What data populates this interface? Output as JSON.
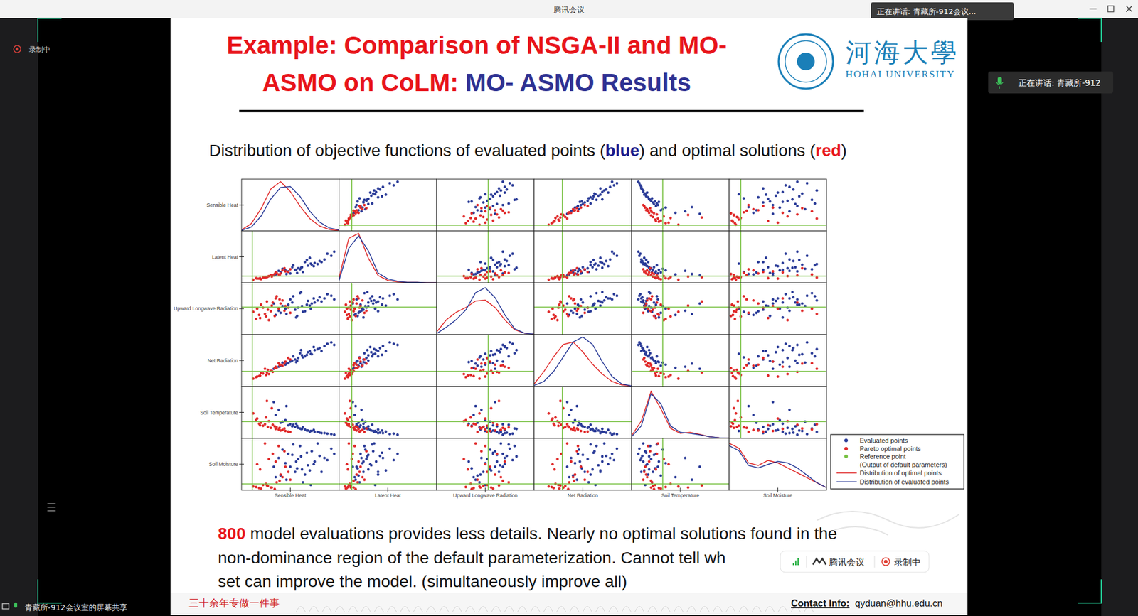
{
  "window": {
    "title": "腾讯会议",
    "speaking_top": "正在讲话: 青藏所-912会议...",
    "speaking_side": "正在讲话: 青藏所-912",
    "recording": "录制中",
    "share_label": "青藏所-912会议室的屏幕共享"
  },
  "slide": {
    "title_line1": "Example: Comparison of NSGA-II and MO-",
    "title_line2": "ASMO on CoLM: ",
    "title_highlight": "MO- ASMO Results",
    "logo_cn": "河海大學",
    "logo_en": "HOHAI UNIVERSITY",
    "subtitle_parts": [
      "Distribution of objective functions of evaluated points (",
      "blue",
      ") and optimal solutions (",
      "red",
      ")"
    ],
    "note_number": 800,
    "note_lines": [
      " model evaluations provides less details. Nearly no optimal solutions found in the",
      "non-dominance region of the default parameterization. Cannot tell wh",
      "set can improve the model. (simultaneously improve all)"
    ],
    "motto": "三十余年专做一件事",
    "contact_label": "Contact Info:",
    "contact": "qyduan@hhu.edu.cn"
  },
  "overlay": {
    "app": "腾讯会议",
    "recording": "录制中"
  },
  "chart_data": {
    "type": "scatter_matrix",
    "variables": [
      "Sensible Heat",
      "Latent Heat",
      "Upward Longwave Radiation",
      "Net Radiation",
      "Soil Temperature",
      "Soil Moisture"
    ],
    "xlim": [
      0,
      1
    ],
    "ylim": [
      0,
      1
    ],
    "tick_labels": false,
    "grid": false,
    "legend": "right",
    "reference": [
      0.11,
      0.13,
      0.53,
      0.29,
      0.32,
      0.12
    ],
    "reference_color": "#78c142",
    "reference_label": "Reference point",
    "reference_note": "(Output of default parameters)",
    "series": [
      {
        "name": "Evaluated points",
        "color": "#2b3c98",
        "marker": "circle",
        "values": [
          [
            0.62,
            0.3,
            0.55,
            0.6,
            0.18,
            0.4
          ],
          [
            0.75,
            0.38,
            0.62,
            0.7,
            0.12,
            0.55
          ],
          [
            0.55,
            0.25,
            0.48,
            0.52,
            0.22,
            0.35
          ],
          [
            0.85,
            0.45,
            0.7,
            0.78,
            0.1,
            0.62
          ],
          [
            0.48,
            0.22,
            0.58,
            0.45,
            0.25,
            0.7
          ],
          [
            0.68,
            0.33,
            0.65,
            0.66,
            0.15,
            0.48
          ],
          [
            0.4,
            0.2,
            0.42,
            0.4,
            0.3,
            0.28
          ],
          [
            0.92,
            0.52,
            0.75,
            0.85,
            0.08,
            0.8
          ],
          [
            0.58,
            0.28,
            0.52,
            0.55,
            0.2,
            0.6
          ],
          [
            0.72,
            0.35,
            0.6,
            0.62,
            0.14,
            0.75
          ],
          [
            0.5,
            0.18,
            0.68,
            0.48,
            0.27,
            0.45
          ],
          [
            0.65,
            0.4,
            0.45,
            0.58,
            0.17,
            0.3
          ],
          [
            0.8,
            0.42,
            0.72,
            0.74,
            0.11,
            0.66
          ],
          [
            0.45,
            0.24,
            0.5,
            0.42,
            0.35,
            0.52
          ],
          [
            0.6,
            0.26,
            0.8,
            0.64,
            0.19,
            0.85
          ],
          [
            0.7,
            0.48,
            0.56,
            0.68,
            0.13,
            0.38
          ],
          [
            0.35,
            0.16,
            0.38,
            0.36,
            0.45,
            0.25
          ],
          [
            0.78,
            0.36,
            0.66,
            0.72,
            0.12,
            0.9
          ],
          [
            0.52,
            0.3,
            0.62,
            0.5,
            0.23,
            0.68
          ],
          [
            0.88,
            0.56,
            0.78,
            0.82,
            0.09,
            0.58
          ],
          [
            0.63,
            0.21,
            0.44,
            0.56,
            0.21,
            0.15
          ],
          [
            0.42,
            0.27,
            0.55,
            0.46,
            0.32,
            0.78
          ],
          [
            0.74,
            0.32,
            0.7,
            0.76,
            0.16,
            0.5
          ],
          [
            0.57,
            0.19,
            0.36,
            0.49,
            0.24,
            0.42
          ],
          [
            0.67,
            0.44,
            0.58,
            0.61,
            0.15,
            0.72
          ],
          [
            0.38,
            0.23,
            0.46,
            0.38,
            0.55,
            0.62
          ],
          [
            0.82,
            0.4,
            0.64,
            0.68,
            0.1,
            0.35
          ],
          [
            0.53,
            0.34,
            0.74,
            0.58,
            0.26,
            0.88
          ],
          [
            0.46,
            0.17,
            0.4,
            0.44,
            0.62,
            0.2
          ],
          [
            0.61,
            0.29,
            0.82,
            0.7,
            0.18,
            0.65
          ],
          [
            0.71,
            0.37,
            0.5,
            0.63,
            0.14,
            0.1
          ],
          [
            0.33,
            0.14,
            0.6,
            0.34,
            0.7,
            0.45
          ],
          [
            0.95,
            0.6,
            0.68,
            0.8,
            0.07,
            0.7
          ],
          [
            0.56,
            0.25,
            0.33,
            0.47,
            0.28,
            0.55
          ]
        ]
      },
      {
        "name": "Pareto optimal points",
        "color": "#e02a2a",
        "marker": "circle",
        "values": [
          [
            0.3,
            0.15,
            0.45,
            0.3,
            0.2,
            0.05
          ],
          [
            0.22,
            0.1,
            0.52,
            0.25,
            0.24,
            0.1
          ],
          [
            0.4,
            0.18,
            0.6,
            0.42,
            0.15,
            0.3
          ],
          [
            0.18,
            0.08,
            0.38,
            0.2,
            0.28,
            0.04
          ],
          [
            0.35,
            0.2,
            0.7,
            0.38,
            0.18,
            0.55
          ],
          [
            0.27,
            0.12,
            0.48,
            0.32,
            0.22,
            0.08
          ],
          [
            0.45,
            0.22,
            0.55,
            0.48,
            0.14,
            0.45
          ],
          [
            0.15,
            0.09,
            0.3,
            0.18,
            0.35,
            0.06
          ],
          [
            0.32,
            0.14,
            0.62,
            0.28,
            0.26,
            0.7
          ],
          [
            0.5,
            0.26,
            0.42,
            0.52,
            0.12,
            0.2
          ],
          [
            0.25,
            0.11,
            0.35,
            0.22,
            0.4,
            0.12
          ],
          [
            0.38,
            0.16,
            0.5,
            0.45,
            0.17,
            0.85
          ],
          [
            0.2,
            0.07,
            0.58,
            0.26,
            0.3,
            0.03
          ],
          [
            0.42,
            0.24,
            0.66,
            0.4,
            0.16,
            0.25
          ],
          [
            0.28,
            0.13,
            0.28,
            0.24,
            0.33,
            0.6
          ],
          [
            0.12,
            0.06,
            0.44,
            0.15,
            0.48,
            0.07
          ],
          [
            0.36,
            0.19,
            0.74,
            0.36,
            0.21,
            0.15
          ],
          [
            0.24,
            0.1,
            0.4,
            0.34,
            0.27,
            0.9
          ],
          [
            0.48,
            0.21,
            0.52,
            0.55,
            0.13,
            0.35
          ],
          [
            0.31,
            0.12,
            0.56,
            0.3,
            0.58,
            0.05
          ],
          [
            0.19,
            0.09,
            0.32,
            0.21,
            0.25,
            0.4
          ],
          [
            0.44,
            0.28,
            0.46,
            0.44,
            0.19,
            0.75
          ],
          [
            0.26,
            0.11,
            0.64,
            0.27,
            0.72,
            0.09
          ],
          [
            0.34,
            0.17,
            0.36,
            0.35,
            0.23,
            0.02
          ],
          [
            0.16,
            0.08,
            0.5,
            0.19,
            0.38,
            0.5
          ],
          [
            0.39,
            0.15,
            0.68,
            0.41,
            0.2,
            0.18
          ]
        ]
      }
    ],
    "density": {
      "x": [
        0,
        0.1,
        0.2,
        0.3,
        0.4,
        0.5,
        0.6,
        0.7,
        0.8,
        0.9,
        1
      ],
      "ylim": [
        0,
        1.05
      ],
      "series": [
        {
          "name": "Distribution of optimal points",
          "color": "#e02a2a",
          "line_style": "solid",
          "values": [
            [
              0.02,
              0.15,
              0.45,
              0.85,
              1.0,
              0.8,
              0.5,
              0.25,
              0.1,
              0.03,
              0.01
            ],
            [
              0.1,
              0.9,
              1.0,
              0.5,
              0.15,
              0.05,
              0.02,
              0.01,
              0.01,
              0.0,
              0.0
            ],
            [
              0.05,
              0.3,
              0.45,
              0.55,
              0.68,
              0.7,
              0.55,
              0.3,
              0.1,
              0.03,
              0.01
            ],
            [
              0.05,
              0.3,
              0.6,
              0.85,
              0.9,
              0.7,
              0.45,
              0.25,
              0.1,
              0.03,
              0.01
            ],
            [
              0.05,
              0.35,
              0.95,
              0.6,
              0.2,
              0.1,
              0.12,
              0.08,
              0.03,
              0.01,
              0.0
            ],
            [
              0.95,
              0.85,
              0.55,
              0.5,
              0.6,
              0.55,
              0.45,
              0.35,
              0.25,
              0.15,
              0.05
            ]
          ]
        },
        {
          "name": "Distribution of evaluated points",
          "color": "#2b3c98",
          "line_style": "solid",
          "values": [
            [
              0.01,
              0.08,
              0.3,
              0.65,
              0.88,
              0.9,
              0.7,
              0.4,
              0.18,
              0.06,
              0.02
            ],
            [
              0.05,
              0.7,
              0.95,
              0.65,
              0.2,
              0.08,
              0.03,
              0.01,
              0.01,
              0.0,
              0.0
            ],
            [
              0.02,
              0.15,
              0.3,
              0.5,
              0.85,
              0.95,
              0.75,
              0.4,
              0.12,
              0.03,
              0.01
            ],
            [
              0.02,
              0.1,
              0.3,
              0.6,
              0.9,
              1.0,
              0.85,
              0.5,
              0.2,
              0.05,
              0.01
            ],
            [
              0.03,
              0.25,
              0.9,
              0.7,
              0.25,
              0.12,
              0.1,
              0.07,
              0.03,
              0.01,
              0.0
            ],
            [
              0.9,
              0.8,
              0.5,
              0.45,
              0.52,
              0.58,
              0.55,
              0.45,
              0.3,
              0.15,
              0.05
            ]
          ]
        }
      ]
    }
  }
}
